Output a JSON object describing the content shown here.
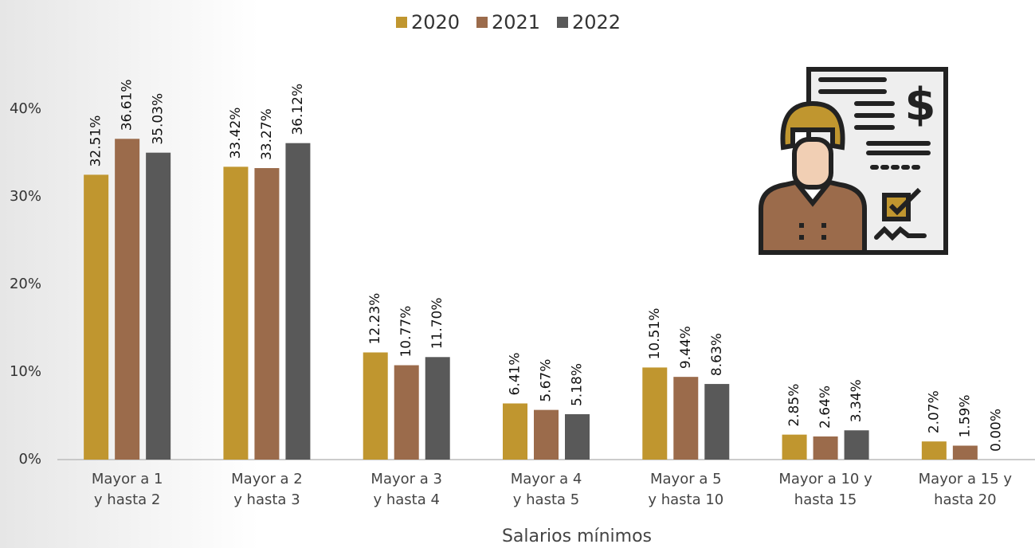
{
  "chart_data": {
    "type": "bar",
    "x_label": "Salarios mínimos",
    "categories": [
      [
        "Mayor a 1",
        "y hasta 2"
      ],
      [
        "Mayor a 2",
        "y hasta 3"
      ],
      [
        "Mayor a 3",
        "y hasta 4"
      ],
      [
        "Mayor a 4",
        "y hasta 5"
      ],
      [
        "Mayor a 5",
        "y hasta 10"
      ],
      [
        "Mayor a 10 y",
        "hasta 15"
      ],
      [
        "Mayor a 15 y",
        "hasta 20"
      ]
    ],
    "series": [
      {
        "name": "2020",
        "color": "#c0962f",
        "values": [
          32.51,
          33.42,
          12.23,
          6.41,
          10.51,
          2.85,
          2.07
        ],
        "value_labels": [
          "32.51%",
          "33.42%",
          "12.23%",
          "6.41%",
          "10.51%",
          "2.85%",
          "2.07%"
        ]
      },
      {
        "name": "2021",
        "color": "#9b6b4b",
        "values": [
          36.61,
          33.27,
          10.77,
          5.67,
          9.44,
          2.64,
          1.59
        ],
        "value_labels": [
          "36.61%",
          "33.27%",
          "10.77%",
          "5.67%",
          "9.44%",
          "2.64%",
          "1.59%"
        ]
      },
      {
        "name": "2022",
        "color": "#595959",
        "values": [
          35.03,
          36.12,
          11.7,
          5.18,
          8.63,
          3.34,
          0.0
        ],
        "value_labels": [
          "35.03%",
          "36.12%",
          "11.70%",
          "5.18%",
          "8.63%",
          "3.34%",
          "0.00%"
        ]
      }
    ],
    "ylim": [
      0,
      40
    ],
    "yticks": [
      {
        "value": 0,
        "label": "0%"
      },
      {
        "value": 10,
        "label": "10%"
      },
      {
        "value": 20,
        "label": "20%"
      },
      {
        "value": 30,
        "label": "30%"
      },
      {
        "value": 40,
        "label": "40%"
      }
    ],
    "legend": "top"
  }
}
